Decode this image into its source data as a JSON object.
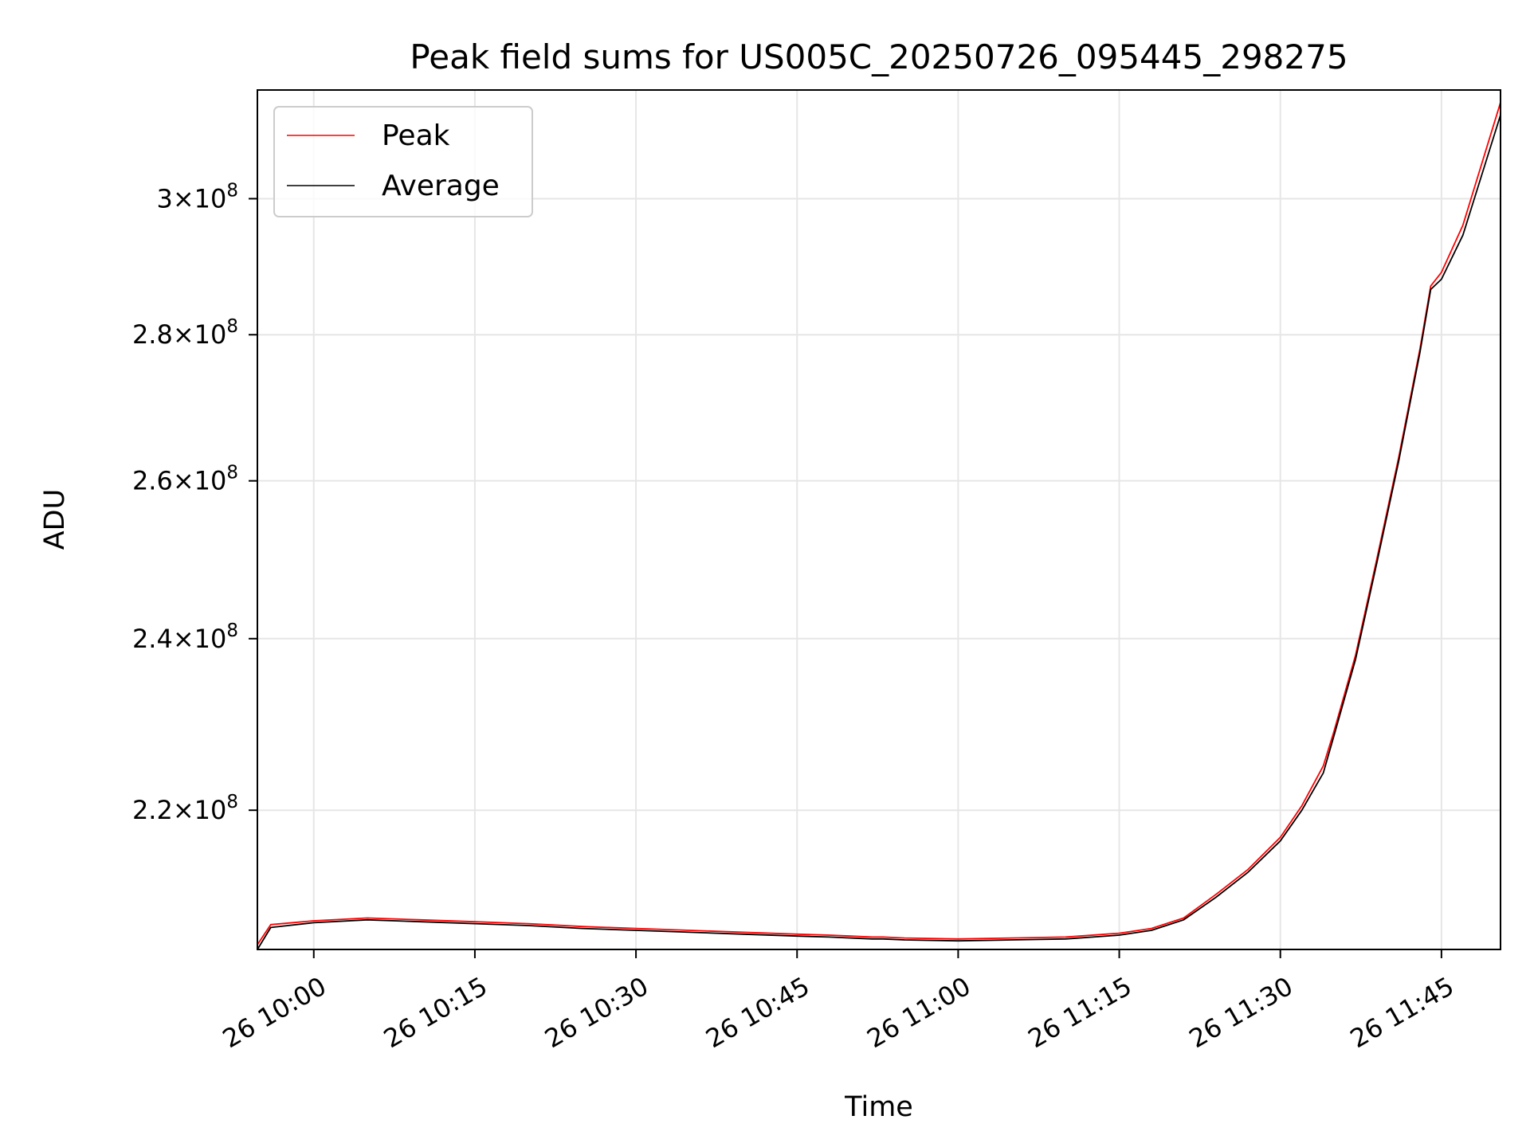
{
  "chart_data": {
    "type": "line",
    "title": "Peak field sums for US005C_20250726_095445_298275",
    "xlabel": "Time",
    "ylabel": "ADU",
    "x_type": "datetime",
    "xlim": [
      "2025-07-26 09:54:45",
      "2025-07-26 11:50:30"
    ],
    "ylim": [
      205000000,
      317000000
    ],
    "yscale": "log",
    "grid": true,
    "legend_position": "upper-left",
    "x_ticks": [
      {
        "value": "2025-07-26 10:00",
        "label": "26 10:00"
      },
      {
        "value": "2025-07-26 10:15",
        "label": "26 10:15"
      },
      {
        "value": "2025-07-26 10:30",
        "label": "26 10:30"
      },
      {
        "value": "2025-07-26 10:45",
        "label": "26 10:45"
      },
      {
        "value": "2025-07-26 11:00",
        "label": "26 11:00"
      },
      {
        "value": "2025-07-26 11:15",
        "label": "26 11:15"
      },
      {
        "value": "2025-07-26 11:30",
        "label": "26 11:30"
      },
      {
        "value": "2025-07-26 11:45",
        "label": "26 11:45"
      }
    ],
    "y_ticks": [
      {
        "value": 220000000,
        "mant": "2.2",
        "exp": "8"
      },
      {
        "value": 240000000,
        "mant": "2.4",
        "exp": "8"
      },
      {
        "value": 260000000,
        "mant": "2.6",
        "exp": "8"
      },
      {
        "value": 280000000,
        "mant": "2.8",
        "exp": "8"
      },
      {
        "value": 300000000,
        "mant": "3",
        "exp": "8"
      }
    ],
    "series": [
      {
        "name": "Peak",
        "color": "#ff0000",
        "x": [
          "2025-07-26 09:54:45",
          "2025-07-26 09:56:00",
          "2025-07-26 10:00:00",
          "2025-07-26 10:05:00",
          "2025-07-26 10:10:00",
          "2025-07-26 10:15:00",
          "2025-07-26 10:20:00",
          "2025-07-26 10:25:00",
          "2025-07-26 10:30:00",
          "2025-07-26 10:35:00",
          "2025-07-26 10:40:00",
          "2025-07-26 10:45:00",
          "2025-07-26 10:48:00",
          "2025-07-26 10:50:00",
          "2025-07-26 10:52:00",
          "2025-07-26 10:53:00",
          "2025-07-26 10:55:00",
          "2025-07-26 11:00:00",
          "2025-07-26 11:05:00",
          "2025-07-26 11:10:00",
          "2025-07-26 11:15:00",
          "2025-07-26 11:18:00",
          "2025-07-26 11:21:00",
          "2025-07-26 11:24:00",
          "2025-07-26 11:27:00",
          "2025-07-26 11:30:00",
          "2025-07-26 11:32:00",
          "2025-07-26 11:34:00",
          "2025-07-26 11:35:00",
          "2025-07-26 11:37:00",
          "2025-07-26 11:39:00",
          "2025-07-26 11:41:00",
          "2025-07-26 11:43:00",
          "2025-07-26 11:44:00",
          "2025-07-26 11:45:00",
          "2025-07-26 11:47:00",
          "2025-07-26 11:50:30"
        ],
        "y": [
          205500000,
          207600000,
          208000000,
          208300000,
          208100000,
          207900000,
          207700000,
          207400000,
          207200000,
          207000000,
          206800000,
          206600000,
          206500000,
          206400000,
          206300000,
          206300000,
          206200000,
          206100000,
          206200000,
          206300000,
          206700000,
          207200000,
          208300000,
          210800000,
          213500000,
          217000000,
          220500000,
          225000000,
          229000000,
          238000000,
          250000000,
          263000000,
          278000000,
          287000000,
          289000000,
          296000000,
          315000000
        ]
      },
      {
        "name": "Average",
        "color": "#000000",
        "x": [
          "2025-07-26 09:54:45",
          "2025-07-26 09:56:00",
          "2025-07-26 10:00:00",
          "2025-07-26 10:05:00",
          "2025-07-26 10:10:00",
          "2025-07-26 10:15:00",
          "2025-07-26 10:20:00",
          "2025-07-26 10:25:00",
          "2025-07-26 10:30:00",
          "2025-07-26 10:35:00",
          "2025-07-26 10:40:00",
          "2025-07-26 10:45:00",
          "2025-07-26 10:48:00",
          "2025-07-26 10:50:00",
          "2025-07-26 10:52:00",
          "2025-07-26 10:53:00",
          "2025-07-26 10:55:00",
          "2025-07-26 11:00:00",
          "2025-07-26 11:05:00",
          "2025-07-26 11:10:00",
          "2025-07-26 11:15:00",
          "2025-07-26 11:18:00",
          "2025-07-26 11:21:00",
          "2025-07-26 11:24:00",
          "2025-07-26 11:27:00",
          "2025-07-26 11:30:00",
          "2025-07-26 11:32:00",
          "2025-07-26 11:34:00",
          "2025-07-26 11:35:00",
          "2025-07-26 11:37:00",
          "2025-07-26 11:39:00",
          "2025-07-26 11:41:00",
          "2025-07-26 11:43:00",
          "2025-07-26 11:44:00",
          "2025-07-26 11:45:00",
          "2025-07-26 11:47:00",
          "2025-07-26 11:50:30"
        ],
        "y": [
          205000000,
          207300000,
          207800000,
          208100000,
          207900000,
          207700000,
          207500000,
          207200000,
          207000000,
          206800000,
          206600000,
          206400000,
          206300000,
          206200000,
          206100000,
          206100000,
          206000000,
          205900000,
          206000000,
          206100000,
          206500000,
          207000000,
          208100000,
          210500000,
          213200000,
          216600000,
          220000000,
          224200000,
          228500000,
          237500000,
          249500000,
          262500000,
          277500000,
          286500000,
          288000000,
          294500000,
          313000000
        ]
      }
    ]
  }
}
